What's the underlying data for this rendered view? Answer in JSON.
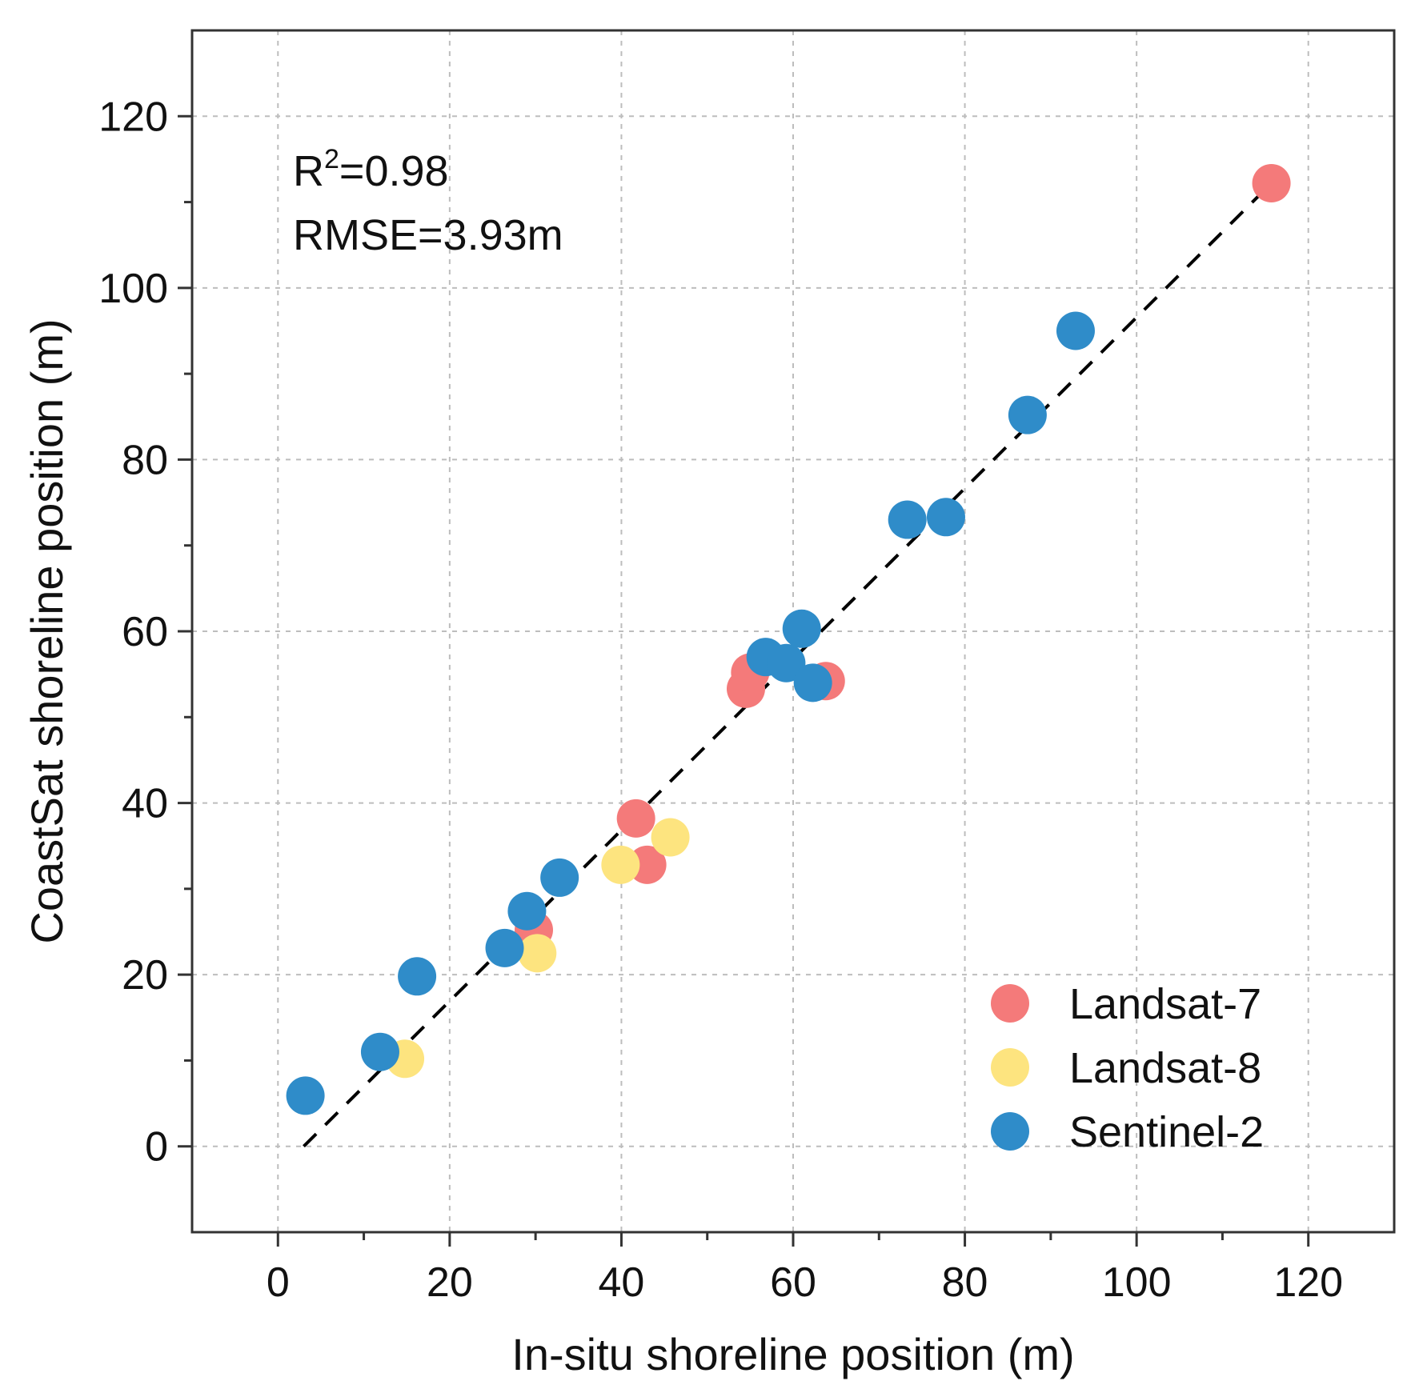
{
  "chart_data": {
    "type": "scatter",
    "title": "",
    "xlabel": "In-situ shoreline position (m)",
    "ylabel": "CoastSat shoreline position (m)",
    "xlim": [
      -10,
      130
    ],
    "ylim": [
      -10,
      130
    ],
    "xticks": [
      0,
      20,
      40,
      60,
      80,
      100,
      120
    ],
    "yticks": [
      0,
      20,
      40,
      60,
      80,
      100,
      120
    ],
    "xtick_labels": [
      "0",
      "20",
      "40",
      "60",
      "80",
      "100",
      "120"
    ],
    "ytick_labels": [
      "0",
      "20",
      "40",
      "60",
      "80",
      "100",
      "120"
    ],
    "grid": true,
    "annotation": {
      "r2_prefix": "R",
      "r2_sup": "2",
      "r2_value": "=0.98",
      "rmse": "RMSE=3.93m"
    },
    "reference_line": {
      "style": "dashed",
      "color": "#000000",
      "x": [
        3,
        115.5
      ],
      "y": [
        0,
        112
      ]
    },
    "legend_position": "bottom-right",
    "series": [
      {
        "name": "Landsat-7",
        "color": "#f47a7a",
        "points": [
          [
            115.7,
            112.2
          ],
          [
            41.7,
            38.2
          ],
          [
            43.0,
            32.8
          ],
          [
            29.8,
            25.2
          ],
          [
            54.5,
            53.3
          ],
          [
            55.0,
            55.2
          ],
          [
            63.8,
            54.2
          ]
        ]
      },
      {
        "name": "Landsat-8",
        "color": "#fde47f",
        "points": [
          [
            14.8,
            10.2
          ],
          [
            30.2,
            22.5
          ],
          [
            39.9,
            32.8
          ],
          [
            45.7,
            36.0
          ]
        ]
      },
      {
        "name": "Sentinel-2",
        "color": "#2f8cc9",
        "points": [
          [
            3.2,
            5.9
          ],
          [
            11.9,
            11.0
          ],
          [
            16.2,
            19.8
          ],
          [
            26.4,
            23.1
          ],
          [
            29.0,
            27.4
          ],
          [
            32.8,
            31.3
          ],
          [
            56.8,
            57.0
          ],
          [
            59.2,
            56.3
          ],
          [
            61.0,
            60.3
          ],
          [
            62.3,
            54.0
          ],
          [
            73.3,
            73.0
          ],
          [
            77.8,
            73.3
          ],
          [
            87.3,
            85.2
          ],
          [
            92.9,
            95.0
          ]
        ]
      }
    ]
  }
}
